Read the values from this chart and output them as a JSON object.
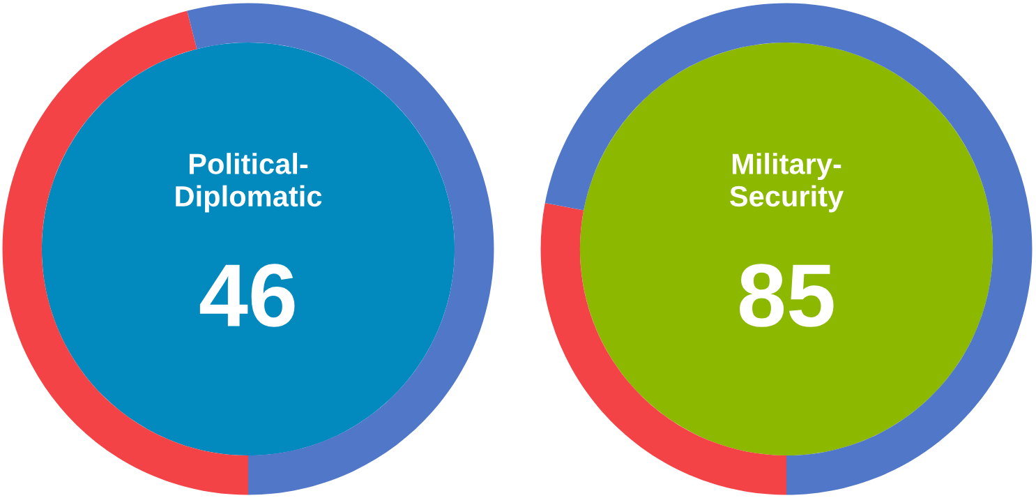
{
  "chart_data": [
    {
      "type": "donut",
      "title": "Political-\nDiplomatic",
      "annotations": [
        "46"
      ],
      "categories": [
        null,
        null
      ],
      "values": [
        46,
        54
      ],
      "colors": [
        "#f44346",
        "#5177c8"
      ]
    },
    {
      "type": "donut",
      "title": "Military-\nSecurity",
      "annotations": [
        "85"
      ],
      "categories": [
        null,
        null
      ],
      "values": [
        28,
        72
      ],
      "colors": [
        "#f44346",
        "#5177c8"
      ]
    }
  ]
}
